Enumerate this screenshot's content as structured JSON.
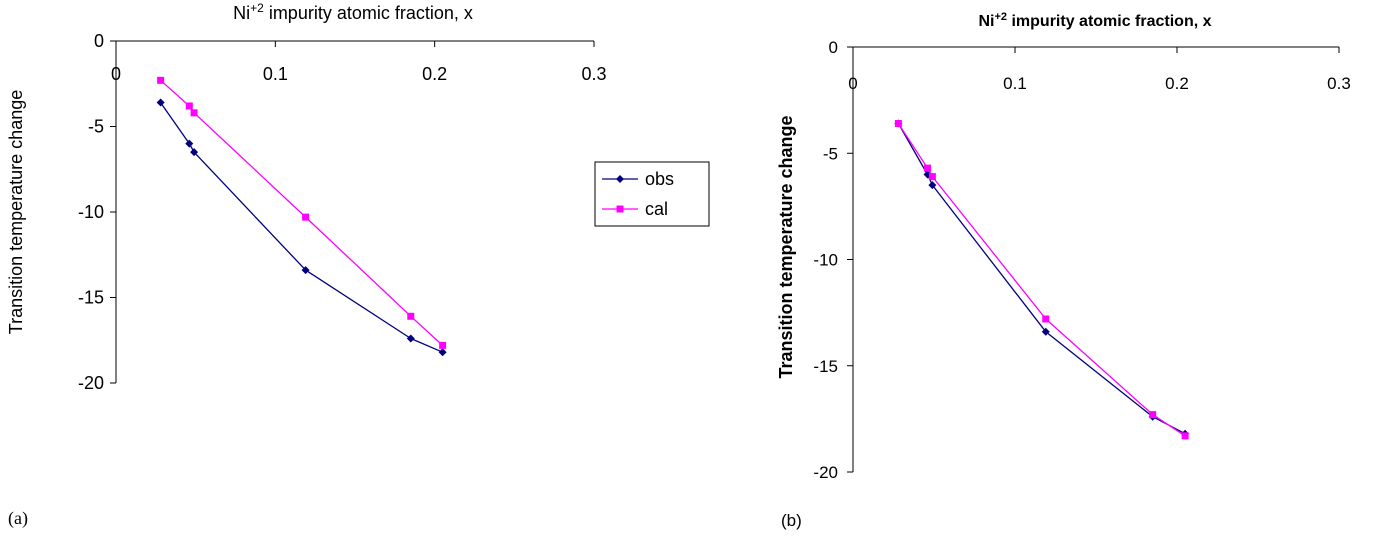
{
  "chart_data": [
    {
      "type": "line",
      "panel_label": "(a)",
      "title_base": "Ni",
      "title_sup": "+2",
      "title_rest": " impurity atomic fraction, x",
      "ylabel": "Transition temperature change",
      "xlim": [
        0,
        0.3
      ],
      "ylim": [
        -20,
        0
      ],
      "x_ticks": [
        "0",
        "0.1",
        "0.2",
        "0.3"
      ],
      "y_ticks": [
        "0",
        "-5",
        "-10",
        "-15",
        "-20"
      ],
      "legend_position": "right",
      "series": [
        {
          "name": "obs",
          "color": "#000080",
          "marker": "diamond",
          "x": [
            0.028,
            0.046,
            0.049,
            0.119,
            0.185,
            0.205
          ],
          "y": [
            -3.6,
            -6.0,
            -6.5,
            -13.4,
            -17.4,
            -18.2
          ]
        },
        {
          "name": "cal",
          "color": "#ff00ff",
          "marker": "square",
          "x": [
            0.028,
            0.046,
            0.049,
            0.119,
            0.185,
            0.205
          ],
          "y": [
            -2.3,
            -3.8,
            -4.2,
            -10.3,
            -16.1,
            -17.8
          ]
        }
      ]
    },
    {
      "type": "line",
      "panel_label": "(b)",
      "title_base": "Ni",
      "title_sup": "+2",
      "title_rest": " impurity atomic fraction, x",
      "ylabel": "Transition temperature change",
      "xlim": [
        0,
        0.3
      ],
      "ylim": [
        -20,
        0
      ],
      "x_ticks": [
        "0",
        "0.1",
        "0.2",
        "0.3"
      ],
      "y_ticks": [
        "0",
        "-5",
        "-10",
        "-15",
        "-20"
      ],
      "series": [
        {
          "color": "#000080",
          "marker": "diamond",
          "x": [
            0.028,
            0.046,
            0.049,
            0.119,
            0.185,
            0.205
          ],
          "y": [
            -3.6,
            -6.0,
            -6.5,
            -13.4,
            -17.4,
            -18.2
          ]
        },
        {
          "color": "#ff00ff",
          "marker": "square",
          "x": [
            0.028,
            0.046,
            0.049,
            0.119,
            0.185,
            0.205
          ],
          "y": [
            -3.6,
            -5.7,
            -6.1,
            -12.8,
            -17.3,
            -18.3
          ]
        }
      ]
    }
  ]
}
